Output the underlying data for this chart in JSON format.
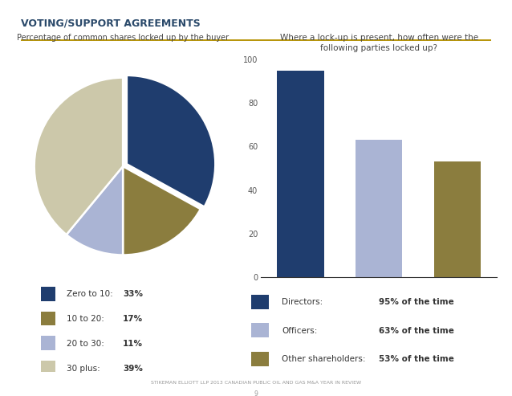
{
  "title": "VOTING/SUPPORT AGREEMENTS",
  "title_color": "#2b4a6b",
  "title_line_color": "#b8960c",
  "background_color": "#ffffff",
  "pie_title": "Percentage of common shares locked up by the buyer",
  "pie_labels": [
    "Zero to 10:",
    "10 to 20:",
    "20 to 30:",
    "30 plus:"
  ],
  "pie_values": [
    33,
    17,
    11,
    39
  ],
  "pie_pct_labels": [
    "33%",
    "17%",
    "11%",
    "39%"
  ],
  "pie_colors": [
    "#1f3d6e",
    "#8b7d3e",
    "#aab4d4",
    "#ccc8aa"
  ],
  "pie_explode": [
    0.05,
    0.0,
    0.0,
    0.0
  ],
  "bar_title": "Where a lock-up is present, how often were the\nfollowing parties locked up?",
  "bar_values": [
    95,
    63,
    53
  ],
  "bar_colors": [
    "#1f3d6e",
    "#aab4d4",
    "#8b7d3e"
  ],
  "bar_ylim": [
    0,
    100
  ],
  "bar_yticks": [
    0,
    20,
    40,
    60,
    80,
    100
  ],
  "bar_legend": [
    {
      "label": "Directors:",
      "pct": "95% of the time",
      "color": "#1f3d6e"
    },
    {
      "label": "Officers:",
      "pct": "63% of the time",
      "color": "#aab4d4"
    },
    {
      "label": "Other shareholders:",
      "pct": "53% of the time",
      "color": "#8b7d3e"
    }
  ],
  "footer": "STIKEMAN ELLIOTT LLP 2013 CANADIAN PUBLIC OIL AND GAS M&A YEAR IN REVIEW",
  "page_num": "9"
}
